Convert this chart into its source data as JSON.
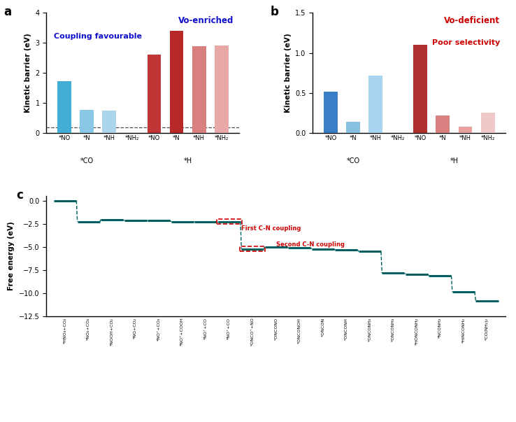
{
  "panel_a": {
    "label": "a",
    "ylabel": "Kinetic barrier (eV)",
    "ylim": [
      0,
      4.0
    ],
    "yticks": [
      0.0,
      1.0,
      2.0,
      3.0,
      4.0
    ],
    "text1": "Vo-enriched",
    "text1_color": "#1010cc",
    "text2": "Coupling favourable",
    "text2_color": "#1010cc",
    "dashed_y": 0.2,
    "bars": [
      {
        "x": 1,
        "height": 1.72,
        "color": "#42aed4"
      },
      {
        "x": 2,
        "height": 0.78,
        "color": "#8ac8e8"
      },
      {
        "x": 3,
        "height": 0.75,
        "color": "#aad4ea"
      },
      {
        "x": 5,
        "height": 2.62,
        "color": "#c03535"
      },
      {
        "x": 6,
        "height": 3.4,
        "color": "#b82828"
      },
      {
        "x": 7,
        "height": 2.88,
        "color": "#d88080"
      },
      {
        "x": 8,
        "height": 2.9,
        "color": "#e8a8a8"
      }
    ],
    "bar_width": 0.62,
    "xlim": [
      0.2,
      8.8
    ],
    "xtick_pos": [
      1,
      2,
      3,
      4,
      5,
      6,
      7,
      8
    ],
    "xtick_labels": [
      "*NO",
      "*N",
      "*NH",
      "*NH₂",
      "*NO",
      "*N",
      "*NH",
      "*NH₂"
    ],
    "grp1_x": 2.0,
    "grp1_label": "*CO",
    "grp2_x": 6.5,
    "grp2_label": "*H"
  },
  "panel_b": {
    "label": "b",
    "ylabel": "Kinetic barrier (eV)",
    "ylim": [
      0,
      1.5
    ],
    "yticks": [
      0.0,
      0.5,
      1.0,
      1.5
    ],
    "text1": "Vo-deficient",
    "text1_color": "#cc0000",
    "text2": "Poor selectivity",
    "text2_color": "#cc0000",
    "bars": [
      {
        "x": 1,
        "height": 0.52,
        "color": "#3a7ec8"
      },
      {
        "x": 2,
        "height": 0.14,
        "color": "#88c0e0"
      },
      {
        "x": 3,
        "height": 0.72,
        "color": "#a8d4f0"
      },
      {
        "x": 5,
        "height": 1.1,
        "color": "#b03030"
      },
      {
        "x": 6,
        "height": 0.22,
        "color": "#d88080"
      },
      {
        "x": 7,
        "height": 0.08,
        "color": "#e8a0a0"
      },
      {
        "x": 8,
        "height": 0.26,
        "color": "#f0c8c8"
      }
    ],
    "bar_width": 0.62,
    "xlim": [
      0.2,
      8.8
    ],
    "xtick_pos": [
      1,
      2,
      3,
      4,
      5,
      6,
      7,
      8
    ],
    "xtick_labels": [
      "*NO",
      "*N",
      "*NH",
      "*NH₂",
      "*NO",
      "*N",
      "*NH",
      "*NH₂"
    ],
    "grp1_x": 2.0,
    "grp1_label": "*CO",
    "grp2_x": 6.5,
    "grp2_label": "*H"
  },
  "panel_c": {
    "label": "c",
    "ylabel": "Free energy (eV)",
    "color": "#005f5f",
    "ylim": [
      -12.5,
      0.5
    ],
    "yticks": [
      0.0,
      -2.5,
      -5.0,
      -7.5,
      -10.0,
      -12.5
    ],
    "ann_cn1": "First C-N coupling",
    "ann_cn1_color": "#cc0000",
    "ann_cn2": "Second C-N coupling",
    "ann_cn2_color": "#cc0000",
    "steps": [
      {
        "label": "*HNO₃+CO₂",
        "y": 0.0
      },
      {
        "label": "*NO₂+CO₂",
        "y": -2.28
      },
      {
        "label": "*NOOH+CO₂",
        "y": -2.05
      },
      {
        "label": "*NO+CO₂",
        "y": -2.18
      },
      {
        "label": "*NO⁺+CO₂",
        "y": -2.13
      },
      {
        "label": "*NO⁺+COOH",
        "y": -2.3
      },
      {
        "label": "*NO⁺+CO",
        "y": -2.26
      },
      {
        "label": "*NO⁺+CO",
        "y": -2.26
      },
      {
        "label": "*ONCO⁺+NO",
        "y": -5.2
      },
      {
        "label": "*ONCONO",
        "y": -4.98
      },
      {
        "label": "*ONCONOH",
        "y": -5.08
      },
      {
        "label": "*ONCON",
        "y": -5.22
      },
      {
        "label": "*ONCONH",
        "y": -5.32
      },
      {
        "label": "*ONCONH₂",
        "y": -5.5
      },
      {
        "label": "*ONCONH₂",
        "y": -7.82
      },
      {
        "label": "*HONCONH₂",
        "y": -7.92
      },
      {
        "label": "*NCONH₂",
        "y": -8.1
      },
      {
        "label": "*HINCONH₂",
        "y": -9.82
      },
      {
        "label": "*CO(NH₂)₂",
        "y": -10.82
      }
    ],
    "cn1_idx": 7,
    "cn2_idx": 8,
    "step_hw": 0.48,
    "seg_lw": 2.2,
    "conn_lw": 1.0
  }
}
